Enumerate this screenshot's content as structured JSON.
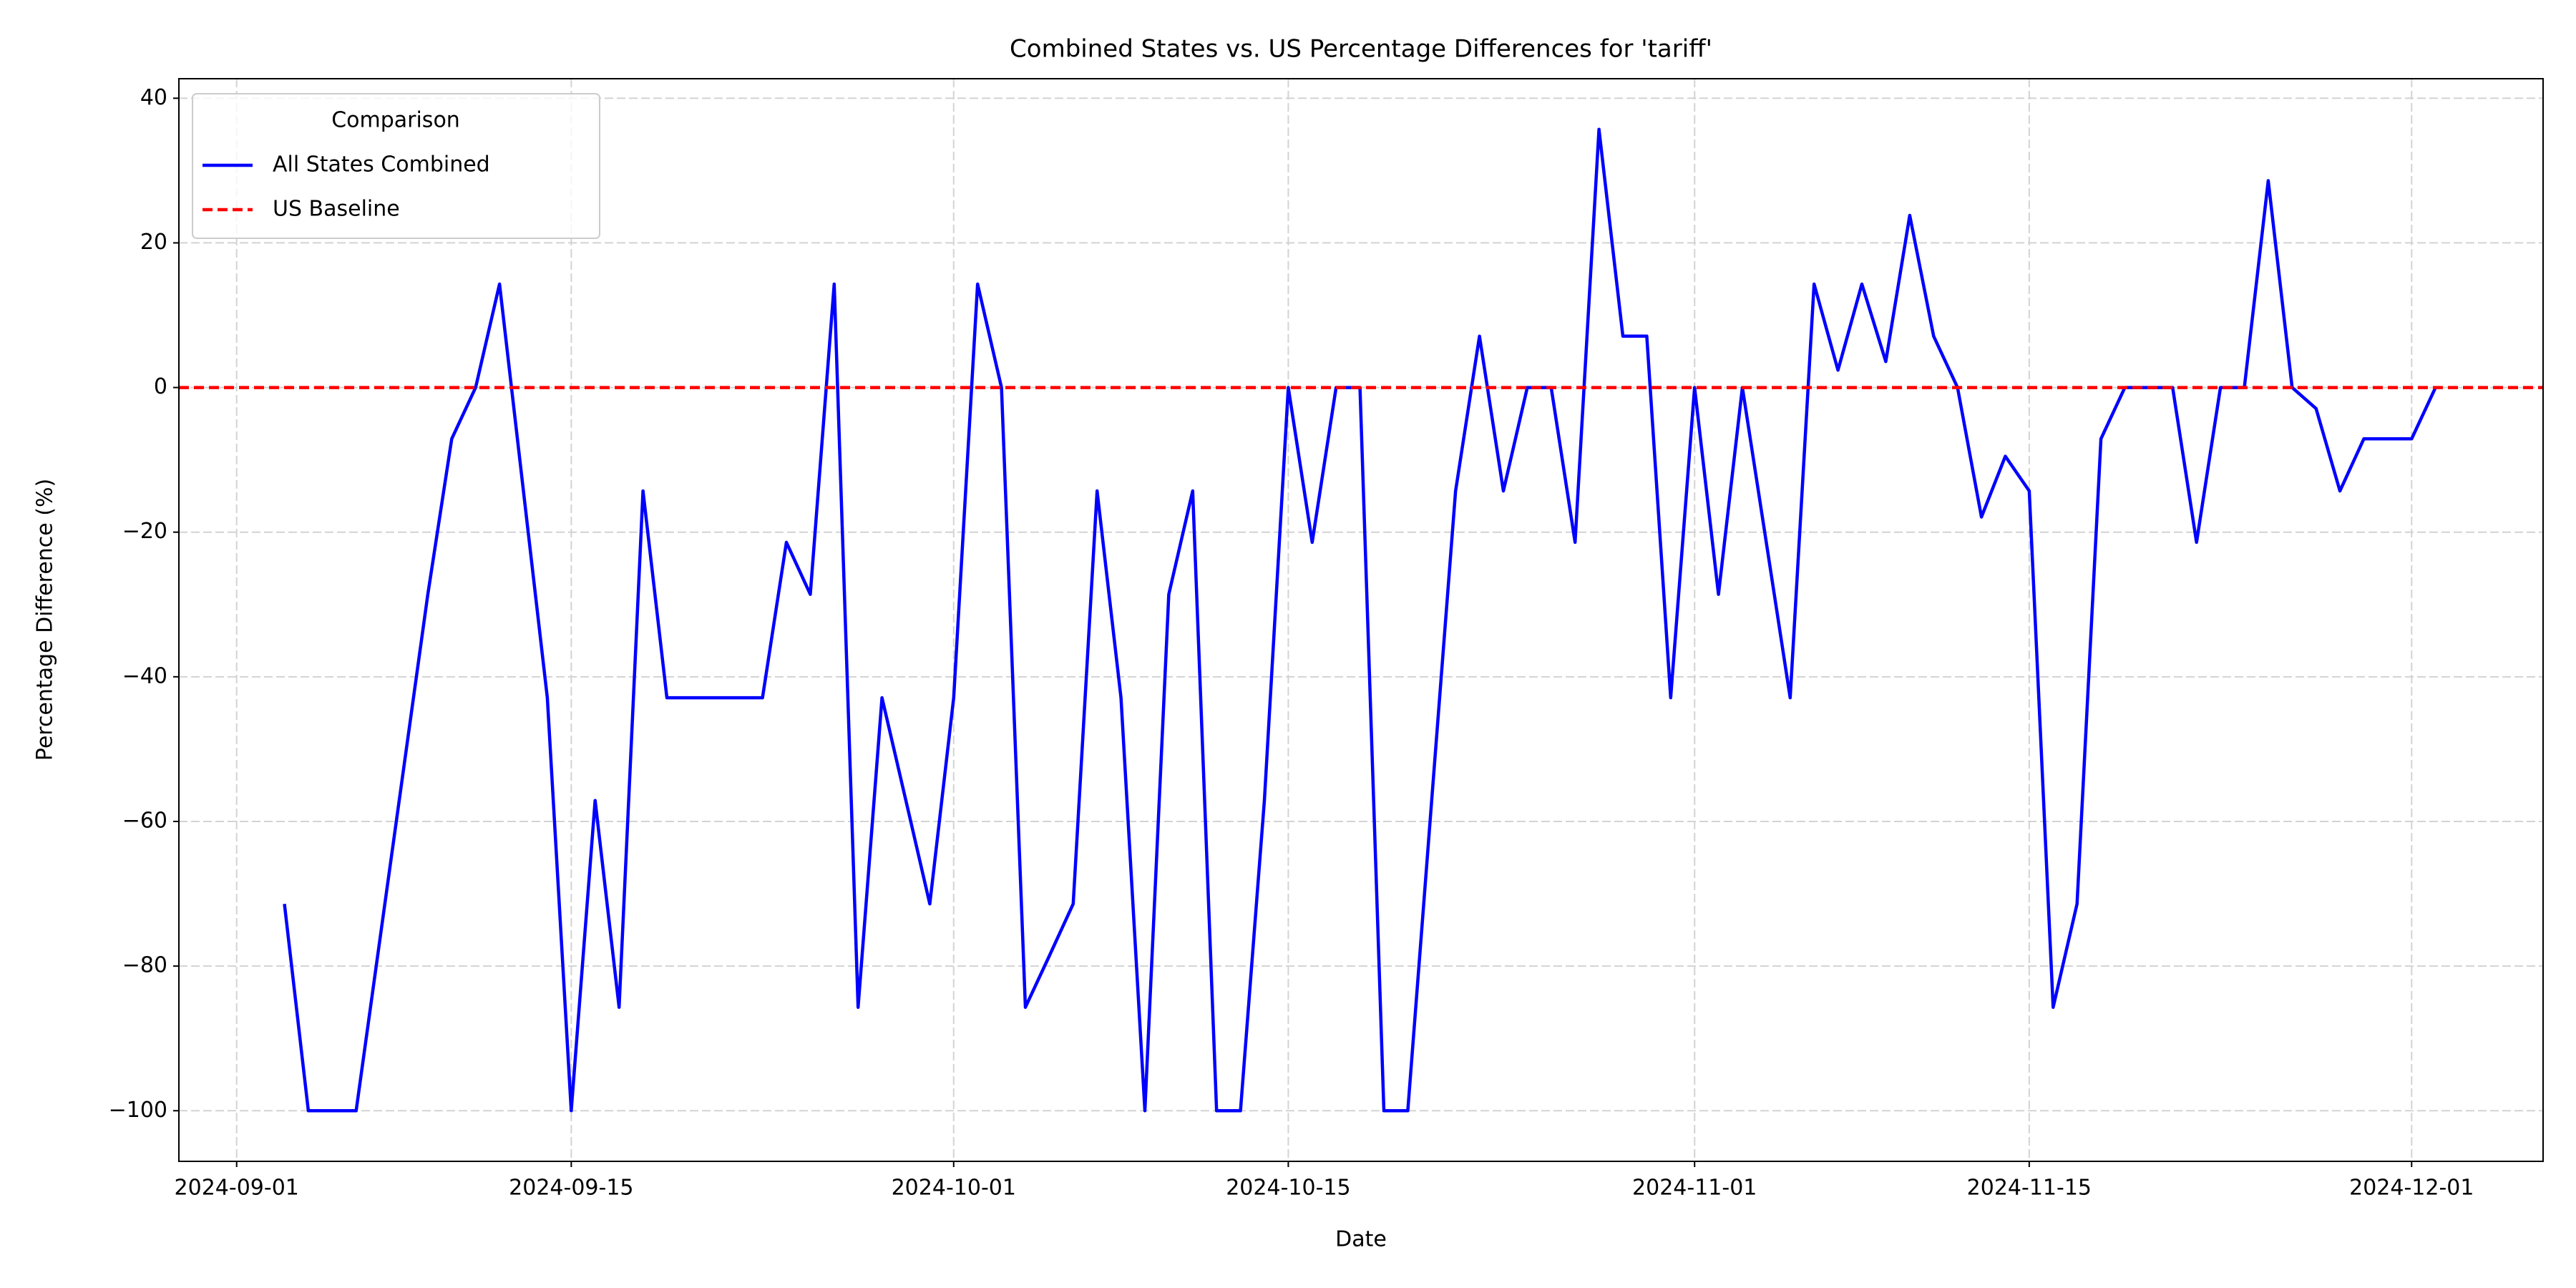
{
  "chart_data": {
    "type": "line",
    "title": "Combined States vs. US Percentage Differences for 'tariff'",
    "xlabel": "Date",
    "ylabel": "Percentage Difference (%)",
    "legend_title": "Comparison",
    "legend": "upper left",
    "grid": true,
    "x": [
      "2024-09-03",
      "2024-09-04",
      "2024-09-05",
      "2024-09-06",
      "2024-09-07",
      "2024-09-08",
      "2024-09-09",
      "2024-09-10",
      "2024-09-11",
      "2024-09-12",
      "2024-09-13",
      "2024-09-14",
      "2024-09-15",
      "2024-09-16",
      "2024-09-17",
      "2024-09-18",
      "2024-09-19",
      "2024-09-20",
      "2024-09-21",
      "2024-09-22",
      "2024-09-23",
      "2024-09-24",
      "2024-09-25",
      "2024-09-26",
      "2024-09-27",
      "2024-09-28",
      "2024-09-29",
      "2024-09-30",
      "2024-10-01",
      "2024-10-02",
      "2024-10-03",
      "2024-10-04",
      "2024-10-05",
      "2024-10-06",
      "2024-10-07",
      "2024-10-08",
      "2024-10-09",
      "2024-10-10",
      "2024-10-11",
      "2024-10-12",
      "2024-10-13",
      "2024-10-14",
      "2024-10-15",
      "2024-10-16",
      "2024-10-17",
      "2024-10-18",
      "2024-10-19",
      "2024-10-20",
      "2024-10-21",
      "2024-10-22",
      "2024-10-23",
      "2024-10-24",
      "2024-10-25",
      "2024-10-26",
      "2024-10-27",
      "2024-10-28",
      "2024-10-29",
      "2024-10-30",
      "2024-10-31",
      "2024-11-01",
      "2024-11-02",
      "2024-11-03",
      "2024-11-04",
      "2024-11-05",
      "2024-11-06",
      "2024-11-07",
      "2024-11-08",
      "2024-11-09",
      "2024-11-10",
      "2024-11-11",
      "2024-11-12",
      "2024-11-13",
      "2024-11-14",
      "2024-11-15",
      "2024-11-16",
      "2024-11-17",
      "2024-11-18",
      "2024-11-19",
      "2024-11-20",
      "2024-11-21",
      "2024-11-22",
      "2024-11-23",
      "2024-11-24",
      "2024-11-25",
      "2024-11-26",
      "2024-11-27",
      "2024-11-28",
      "2024-11-29",
      "2024-11-30",
      "2024-12-01",
      "2024-12-02"
    ],
    "series": [
      {
        "name": "All States Combined",
        "color": "#0000ff",
        "style": "solid",
        "values": [
          -71.4,
          -100,
          -100,
          -100,
          -76.2,
          -52.4,
          -28.6,
          -7.1,
          0,
          14.3,
          -14.3,
          -42.9,
          -100,
          -57.1,
          -85.7,
          -14.3,
          -42.9,
          -42.9,
          -42.9,
          -42.9,
          -42.9,
          -21.4,
          -28.6,
          14.3,
          -85.7,
          -42.9,
          -57.1,
          -71.4,
          -42.9,
          14.3,
          0,
          -85.7,
          -78.6,
          -71.4,
          -14.3,
          -42.9,
          -100,
          -28.6,
          -14.3,
          -100,
          -100,
          -57.1,
          0,
          -21.4,
          0,
          0,
          -100,
          -100,
          -57.1,
          -14.3,
          7.1,
          -14.3,
          0,
          0,
          -21.4,
          35.7,
          7.1,
          7.1,
          -42.9,
          0,
          -28.6,
          0,
          -21.4,
          -42.9,
          14.3,
          2.4,
          14.3,
          3.6,
          23.8,
          7.1,
          0,
          -17.9,
          -9.5,
          -14.3,
          -85.7,
          -71.4,
          -7.1,
          0,
          0,
          0,
          -21.4,
          0,
          0,
          28.6,
          0,
          -2.9,
          -14.3,
          -7.1,
          -7.1,
          -7.1,
          0
        ]
      },
      {
        "name": "US Baseline",
        "color": "#ff0000",
        "style": "dashed",
        "y": 0
      }
    ],
    "xlim": [
      "2024-08-29T14:00Z",
      "2024-12-06T12:00Z"
    ],
    "xticks": [
      "2024-09-01",
      "2024-09-15",
      "2024-10-01",
      "2024-10-15",
      "2024-11-01",
      "2024-11-15",
      "2024-12-01"
    ],
    "ylim": [
      -107,
      42.7
    ],
    "yticks": [
      {
        "value": -100,
        "label": "−100"
      },
      {
        "value": -80,
        "label": "−80"
      },
      {
        "value": -60,
        "label": "−60"
      },
      {
        "value": -40,
        "label": "−40"
      },
      {
        "value": -20,
        "label": "−20"
      },
      0,
      20,
      40
    ]
  }
}
